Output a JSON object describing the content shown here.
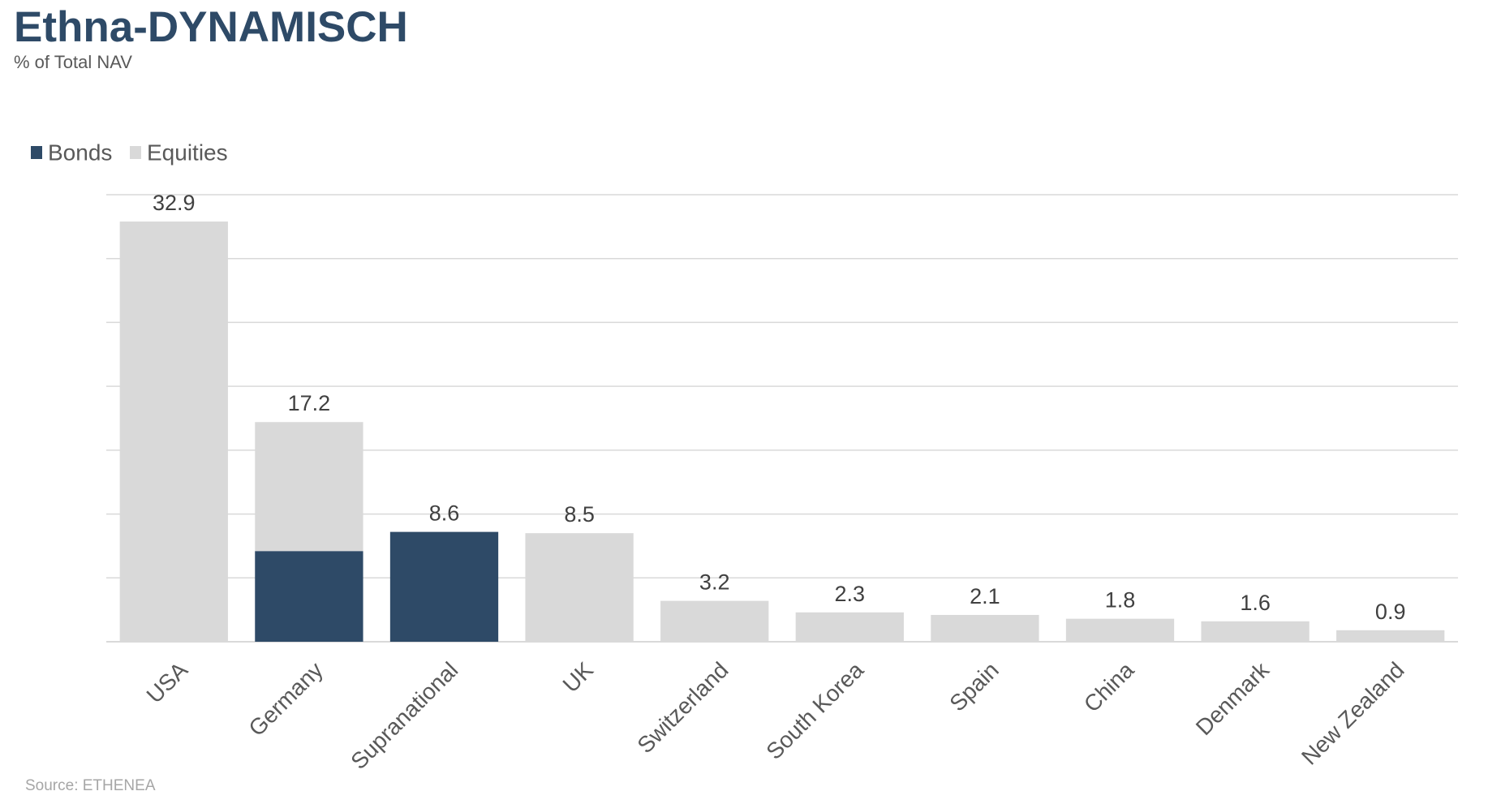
{
  "header": {
    "title": "Ethna-DYNAMISCH",
    "subtitle": "% of Total NAV"
  },
  "footer": {
    "source": "Source: ETHENEA"
  },
  "colors": {
    "title": "#2e4a67",
    "bonds": "#2e4a67",
    "equities": "#d9d9d9",
    "gridline": "#d9d9d9",
    "axis_text": "#595959",
    "data_label": "#404040"
  },
  "chart_data": {
    "type": "bar",
    "stacked": true,
    "categories": [
      "USA",
      "Germany",
      "Supranational",
      "UK",
      "Switzerland",
      "South Korea",
      "Spain",
      "China",
      "Denmark",
      "New Zealand"
    ],
    "series": [
      {
        "name": "Bonds",
        "color": "#2e4a67",
        "values": [
          0,
          7.1,
          8.6,
          0,
          0,
          0,
          0,
          0,
          0,
          0
        ]
      },
      {
        "name": "Equities",
        "color": "#d9d9d9",
        "values": [
          32.9,
          10.1,
          0,
          8.5,
          3.2,
          2.3,
          2.1,
          1.8,
          1.6,
          0.9
        ]
      }
    ],
    "totals": [
      "32.9",
      "17.2",
      "8.6",
      "8.5",
      "3.2",
      "2.3",
      "2.1",
      "1.8",
      "1.6",
      "0.9"
    ],
    "ylim": [
      0,
      35
    ],
    "ytick_step": 5,
    "y_tick_labels_visible": false,
    "grid": true,
    "legend_position": "top-left",
    "xlabel": "",
    "ylabel": ""
  }
}
